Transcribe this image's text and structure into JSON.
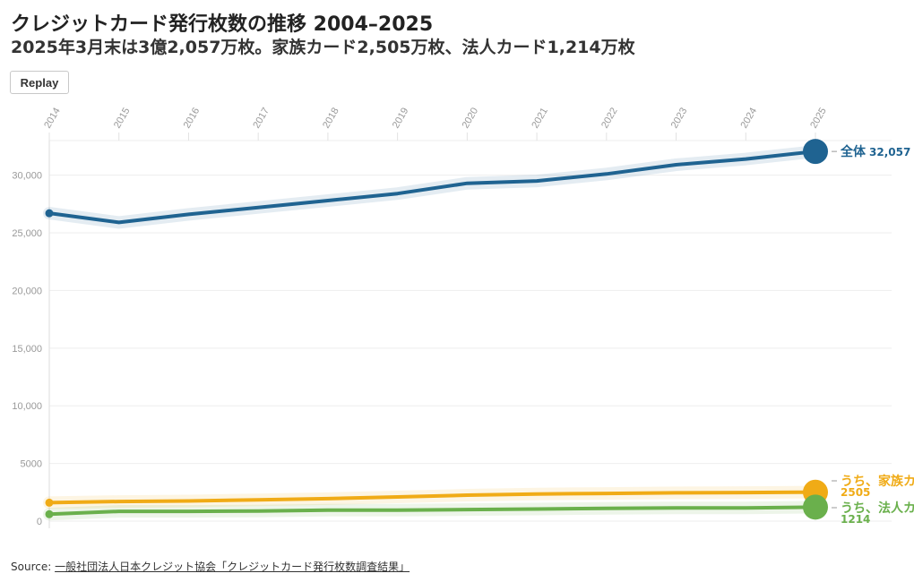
{
  "title": "クレジットカード発行枚数の推移 2004–2025",
  "subtitle": "2025年3月末は3億2,057万枚。家族カード2,505万枚、法人カード1,214万枚",
  "replay_label": "Replay",
  "source": {
    "prefix": "Source: ",
    "link_text": "一般社団法人日本クレジット協会「クレジットカード発行枚数調査結果」"
  },
  "chart_data": {
    "type": "line",
    "x": [
      "2014",
      "2015",
      "2016",
      "2017",
      "2018",
      "2019",
      "2020",
      "2021",
      "2022",
      "2023",
      "2024",
      "2025"
    ],
    "y_ticks": [
      "0",
      "5000",
      "10,000",
      "15,000",
      "20,000",
      "25,000",
      "30,000"
    ],
    "ylim": [
      0,
      33000
    ],
    "grid": true,
    "series": [
      {
        "name": "全体",
        "end_label": "32,057",
        "color": "#1f6391",
        "values": [
          26700,
          25900,
          26600,
          27200,
          27800,
          28400,
          29300,
          29500,
          30100,
          30900,
          31400,
          32057
        ]
      },
      {
        "name": "うち、家族カード",
        "end_label": "2505",
        "color": "#f0ab16",
        "values": [
          1600,
          1700,
          1750,
          1850,
          1950,
          2100,
          2250,
          2350,
          2400,
          2450,
          2480,
          2505
        ]
      },
      {
        "name": "うち、法人カード",
        "end_label": "1214",
        "color": "#6ab04c",
        "values": [
          600,
          850,
          850,
          880,
          950,
          950,
          1000,
          1050,
          1100,
          1150,
          1150,
          1214
        ]
      }
    ]
  }
}
